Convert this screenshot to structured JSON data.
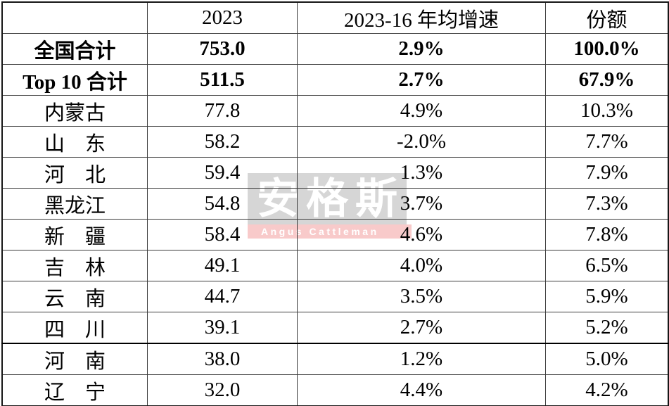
{
  "table": {
    "header": {
      "c0": "",
      "c1": "2023",
      "c2": "2023-16 年均增速",
      "c3": "份额"
    },
    "rows": [
      {
        "name": "全国合计",
        "v2023": "753.0",
        "cagr": "2.9%",
        "share": "100.0%"
      },
      {
        "name": "Top 10 合计",
        "v2023": "511.5",
        "cagr": "2.7%",
        "share": "67.9%"
      },
      {
        "name": "内蒙古",
        "v2023": "77.8",
        "cagr": "4.9%",
        "share": "10.3%"
      },
      {
        "name": "山　东",
        "v2023": "58.2",
        "cagr": "-2.0%",
        "share": "7.7%"
      },
      {
        "name": "河　北",
        "v2023": "59.4",
        "cagr": "1.3%",
        "share": "7.9%"
      },
      {
        "name": "黑龙江",
        "v2023": "54.8",
        "cagr": "3.7%",
        "share": "7.3%"
      },
      {
        "name": "新　疆",
        "v2023": "58.4",
        "cagr": "4.6%",
        "share": "7.8%"
      },
      {
        "name": "吉　林",
        "v2023": "49.1",
        "cagr": "4.0%",
        "share": "6.5%"
      },
      {
        "name": "云　南",
        "v2023": "44.7",
        "cagr": "3.5%",
        "share": "5.9%"
      },
      {
        "name": "四　川",
        "v2023": "39.1",
        "cagr": "2.7%",
        "share": "5.2%"
      },
      {
        "name": "河　南",
        "v2023": "38.0",
        "cagr": "1.2%",
        "share": "5.0%"
      },
      {
        "name": "辽　宁",
        "v2023": "32.0",
        "cagr": "4.4%",
        "share": "4.2%"
      }
    ]
  },
  "watermark": {
    "cn": "安格斯",
    "en": "Angus Cattleman"
  },
  "colors": {
    "background": "#ffffff",
    "text": "#000000",
    "grid_line": "#3c3c3c",
    "heavy_line": "#000000",
    "watermark_block": "#d6d6d6",
    "watermark_strip": "#f8caca",
    "watermark_text": "#ffffff"
  },
  "chart_data": {
    "type": "table",
    "title": "",
    "columns": [
      "",
      "2023",
      "2023-16 年均增速",
      "份额"
    ],
    "rows": [
      [
        "全国合计",
        753.0,
        "2.9%",
        "100.0%"
      ],
      [
        "Top 10 合计",
        511.5,
        "2.7%",
        "67.9%"
      ],
      [
        "内蒙古",
        77.8,
        "4.9%",
        "10.3%"
      ],
      [
        "山东",
        58.2,
        "-2.0%",
        "7.7%"
      ],
      [
        "河北",
        59.4,
        "1.3%",
        "7.9%"
      ],
      [
        "黑龙江",
        54.8,
        "3.7%",
        "7.3%"
      ],
      [
        "新疆",
        58.4,
        "4.6%",
        "7.8%"
      ],
      [
        "吉林",
        49.1,
        "4.0%",
        "6.5%"
      ],
      [
        "云南",
        44.7,
        "3.5%",
        "5.9%"
      ],
      [
        "四川",
        39.1,
        "2.7%",
        "5.2%"
      ],
      [
        "河南",
        38.0,
        "1.2%",
        "5.0%"
      ],
      [
        "辽宁",
        32.0,
        "4.4%",
        "4.2%"
      ]
    ]
  }
}
